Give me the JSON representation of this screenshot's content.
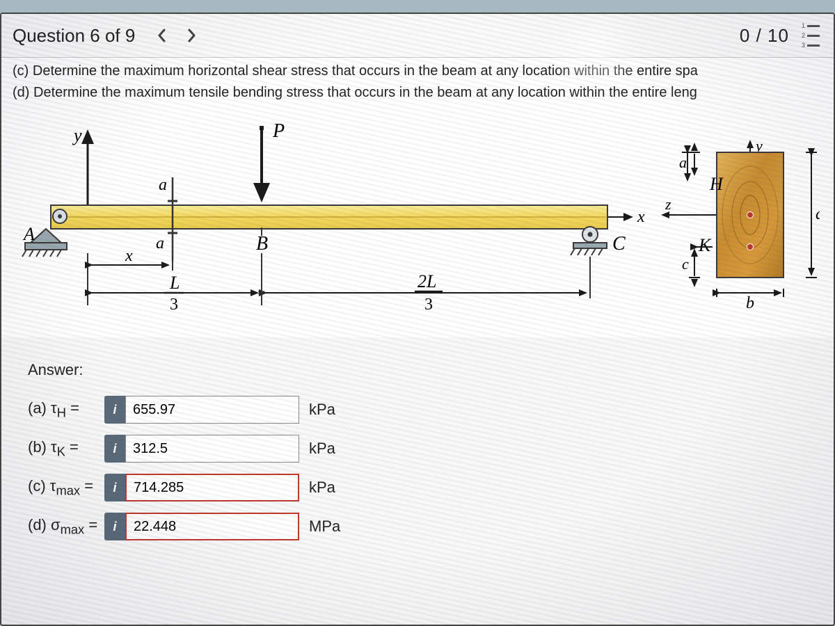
{
  "header": {
    "title": "Question 6 of 9",
    "score": "0 / 10"
  },
  "question": {
    "line_c": "(c) Determine the maximum horizontal shear stress that occurs in the beam at any location within the entire spa",
    "line_d": "(d) Determine the maximum tensile bending stress that occurs in the beam at any location within the entire leng"
  },
  "figure": {
    "labels": {
      "A": "A",
      "B": "B",
      "C": "C",
      "P": "P",
      "x_axis": "x",
      "y_axis": "y",
      "z_axis": "z",
      "a_sec": "a",
      "x_dim": "x",
      "L3": "L",
      "three_a": "3",
      "twoL3_top": "2L",
      "twoL3_bot": "3",
      "H": "H",
      "K": "K",
      "b_dim": "b",
      "d_dim": "d",
      "a_cs": "a",
      "c_cs": "c",
      "y_cs": "y"
    },
    "colors": {
      "beam_fill": "#f6e27a",
      "beam_dark": "#e8c94d",
      "beam_border": "#3a3a3a",
      "support_fill": "#9aa8b0",
      "support_border": "#3a3a3a",
      "arrow": "#1a1a1a",
      "centerline": "#555",
      "wood_light": "#d9a441",
      "wood_dark": "#b47a22"
    }
  },
  "answers": {
    "heading": "Answer:",
    "rows": [
      {
        "key_html": "(a) τ<sub>H</sub> =",
        "value": "655.97",
        "unit": "kPa",
        "incorrect": false
      },
      {
        "key_html": "(b) τ<sub>K</sub> =",
        "value": "312.5",
        "unit": "kPa",
        "incorrect": false
      },
      {
        "key_html": "(c) τ<sub>max</sub> =",
        "value": "714.285",
        "unit": "kPa",
        "incorrect": true
      },
      {
        "key_html": "(d) σ<sub>max</sub> =",
        "value": "22.448",
        "unit": "MPa",
        "incorrect": true
      }
    ],
    "info_glyph": "i"
  }
}
